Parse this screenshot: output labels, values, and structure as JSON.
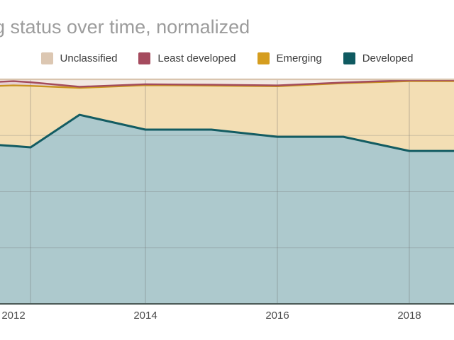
{
  "title": "g status over time, normalized",
  "legend": [
    {
      "id": "unclassified",
      "label": "Unclassified",
      "color": "#dcc7b2"
    },
    {
      "id": "least_developed",
      "label": "Least developed",
      "color": "#a54b5e"
    },
    {
      "id": "emerging",
      "label": "Emerging",
      "color": "#d59d1f"
    },
    {
      "id": "developed",
      "label": "Developed",
      "color": "#0f5a61"
    }
  ],
  "x_axis": {
    "tick_labels": [
      "2012",
      "2014",
      "2016",
      "2018"
    ]
  },
  "chart_data": {
    "type": "area",
    "stacked": true,
    "normalized": true,
    "title": "g status over time, normalized",
    "legend_position": "top",
    "grid": true,
    "unit": "%",
    "ylim": [
      0,
      100
    ],
    "y_gridline_percents": [
      25,
      50,
      75
    ],
    "x": [
      2011.79,
      2012,
      2012.26,
      2013,
      2014,
      2015,
      2016,
      2017,
      2018,
      2018.68
    ],
    "x_tick_years": [
      2012,
      2014,
      2016,
      2018
    ],
    "series": [
      {
        "name": "Developed",
        "fill": "#adc9cd",
        "stroke": "#135c62",
        "values": [
          70.7,
          70.3,
          69.7,
          84.2,
          77.6,
          77.6,
          74.4,
          74.4,
          68.1,
          68.1
        ]
      },
      {
        "name": "Emerging",
        "fill": "#f3deb4",
        "stroke": "#c9931f",
        "values": [
          26.4,
          27.0,
          27.4,
          12.0,
          19.8,
          19.6,
          22.5,
          23.9,
          31.1,
          31.1
        ]
      },
      {
        "name": "Least developed",
        "fill": "#e6d0d3",
        "stroke": "#a34b5b",
        "values": [
          1.8,
          1.9,
          1.6,
          0.5,
          0.4,
          0.4,
          0.4,
          0.3,
          0.4,
          0.4
        ]
      },
      {
        "name": "Unclassified",
        "fill": "#f2e8e2",
        "stroke": "#d9c4ae",
        "values": [
          1.1,
          0.8,
          1.3,
          3.3,
          2.2,
          2.4,
          2.7,
          1.4,
          0.4,
          0.4
        ]
      }
    ]
  }
}
